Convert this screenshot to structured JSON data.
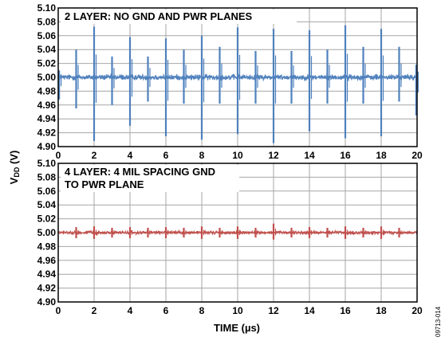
{
  "chart_data": [
    {
      "type": "line",
      "title_lines": [
        "2 LAYER: NO GND AND PWR PLANES"
      ],
      "xlabel": "TIME (µs)",
      "ylabel_main": "V",
      "ylabel_sub": "DD",
      "ylabel_unit": " (V)",
      "xlim": [
        0,
        20
      ],
      "ylim": [
        4.9,
        5.1
      ],
      "x_ticks": [
        "0",
        "2",
        "4",
        "6",
        "8",
        "10",
        "12",
        "14",
        "16",
        "18",
        "20"
      ],
      "y_ticks": [
        "5.10",
        "5.08",
        "5.06",
        "5.04",
        "5.02",
        "5.00",
        "4.98",
        "4.96",
        "4.94",
        "4.92",
        "4.90"
      ],
      "grid": true,
      "series": [
        {
          "color": "#4f81bd",
          "baseline": 5.0,
          "noise": 0.004,
          "spikes": [
            {
              "x": 0.05,
              "max": 5.01,
              "min": 4.968
            },
            {
              "x": 1.0,
              "max": 5.04,
              "min": 4.955
            },
            {
              "x": 2.0,
              "max": 5.073,
              "min": 4.908
            },
            {
              "x": 3.0,
              "max": 5.03,
              "min": 4.96
            },
            {
              "x": 4.0,
              "max": 5.058,
              "min": 4.93
            },
            {
              "x": 5.0,
              "max": 5.03,
              "min": 4.965
            },
            {
              "x": 6.0,
              "max": 5.056,
              "min": 4.915
            },
            {
              "x": 7.0,
              "max": 5.04,
              "min": 4.962
            },
            {
              "x": 8.0,
              "max": 5.06,
              "min": 4.91
            },
            {
              "x": 9.0,
              "max": 5.044,
              "min": 4.962
            },
            {
              "x": 10.0,
              "max": 5.072,
              "min": 4.918
            },
            {
              "x": 11.0,
              "max": 5.038,
              "min": 4.962
            },
            {
              "x": 12.0,
              "max": 5.07,
              "min": 4.905
            },
            {
              "x": 13.0,
              "max": 5.038,
              "min": 4.962
            },
            {
              "x": 14.0,
              "max": 5.068,
              "min": 4.922
            },
            {
              "x": 15.0,
              "max": 5.04,
              "min": 4.962
            },
            {
              "x": 16.0,
              "max": 5.075,
              "min": 4.912
            },
            {
              "x": 17.0,
              "max": 5.044,
              "min": 4.962
            },
            {
              "x": 18.0,
              "max": 5.07,
              "min": 4.915
            },
            {
              "x": 19.0,
              "max": 5.044,
              "min": 4.965
            },
            {
              "x": 19.95,
              "max": 5.018,
              "min": 4.945
            }
          ]
        }
      ]
    },
    {
      "type": "line",
      "title_lines": [
        "4 LAYER: 4 MIL SPACING GND",
        "TO PWR PLANE"
      ],
      "xlabel": "TIME (µs)",
      "xlim": [
        0,
        20
      ],
      "ylim": [
        4.9,
        5.1
      ],
      "x_ticks": [
        "0",
        "2",
        "4",
        "6",
        "8",
        "10",
        "12",
        "14",
        "16",
        "18",
        "20"
      ],
      "y_ticks": [
        "5.10",
        "5.08",
        "5.06",
        "5.04",
        "5.02",
        "5.00",
        "4.98",
        "4.96",
        "4.94",
        "4.92",
        "4.90"
      ],
      "grid": true,
      "series": [
        {
          "color": "#c0504d",
          "baseline": 5.0,
          "noise": 0.0022,
          "spikes": [
            {
              "x": 1.0,
              "max": 5.008,
              "min": 4.992
            },
            {
              "x": 2.0,
              "max": 5.009,
              "min": 4.991
            },
            {
              "x": 3.0,
              "max": 5.007,
              "min": 4.993
            },
            {
              "x": 4.0,
              "max": 5.008,
              "min": 4.992
            },
            {
              "x": 5.0,
              "max": 5.007,
              "min": 4.993
            },
            {
              "x": 6.0,
              "max": 5.008,
              "min": 4.992
            },
            {
              "x": 7.0,
              "max": 5.007,
              "min": 4.993
            },
            {
              "x": 8.0,
              "max": 5.009,
              "min": 4.991
            },
            {
              "x": 9.0,
              "max": 5.007,
              "min": 4.993
            },
            {
              "x": 10.0,
              "max": 5.009,
              "min": 4.991
            },
            {
              "x": 11.0,
              "max": 5.007,
              "min": 4.993
            },
            {
              "x": 12.0,
              "max": 5.013,
              "min": 4.99
            },
            {
              "x": 13.0,
              "max": 5.007,
              "min": 4.993
            },
            {
              "x": 14.0,
              "max": 5.008,
              "min": 4.992
            },
            {
              "x": 15.0,
              "max": 5.007,
              "min": 4.993
            },
            {
              "x": 16.0,
              "max": 5.009,
              "min": 4.991
            },
            {
              "x": 17.0,
              "max": 5.007,
              "min": 4.993
            },
            {
              "x": 18.0,
              "max": 5.009,
              "min": 4.991
            },
            {
              "x": 19.0,
              "max": 5.007,
              "min": 4.993
            }
          ]
        }
      ]
    }
  ],
  "figure_id": "09713-014"
}
